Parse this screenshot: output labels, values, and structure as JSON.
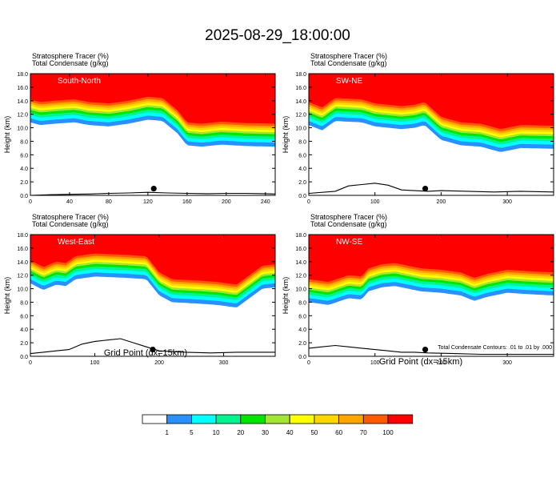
{
  "figure": {
    "title": "2025-08-29_18:00:00",
    "footnote": "Total Condensate Contours: .01 to .01 by .000",
    "xlabel": "Grid Point (dx=15km)"
  },
  "chart_data": [
    {
      "type": "heatmap",
      "panel_label": "South-North",
      "header_line1": "Stratosphere Tracer   (%)",
      "header_line2": "Total Condensate   (g/kg)",
      "ylabel": "Height (km)",
      "xlabel": "",
      "xlim": [
        0,
        250
      ],
      "ylim": [
        0,
        18
      ],
      "xticks": [
        0,
        40,
        80,
        120,
        160,
        200,
        240
      ],
      "yticks": [
        0.0,
        2.0,
        4.0,
        6.0,
        8.0,
        10.0,
        12.0,
        14.0,
        16.0,
        18.0
      ],
      "tropopause_profile_km": [
        [
          0,
          14.2
        ],
        [
          10,
          13.8
        ],
        [
          25,
          14.0
        ],
        [
          45,
          14.2
        ],
        [
          60,
          13.8
        ],
        [
          80,
          13.6
        ],
        [
          100,
          14.0
        ],
        [
          120,
          14.6
        ],
        [
          135,
          14.4
        ],
        [
          150,
          12.6
        ],
        [
          160,
          10.8
        ],
        [
          175,
          10.6
        ],
        [
          195,
          10.9
        ],
        [
          220,
          10.7
        ],
        [
          250,
          10.6
        ]
      ],
      "terrain_km": [
        [
          0,
          0.0
        ],
        [
          20,
          0.1
        ],
        [
          40,
          0.15
        ],
        [
          60,
          0.2
        ],
        [
          80,
          0.3
        ],
        [
          100,
          0.35
        ],
        [
          120,
          0.45
        ],
        [
          140,
          0.35
        ],
        [
          160,
          0.3
        ],
        [
          180,
          0.25
        ],
        [
          200,
          0.3
        ],
        [
          220,
          0.3
        ],
        [
          240,
          0.25
        ],
        [
          250,
          0.2
        ]
      ],
      "marker": [
        126,
        1.0
      ]
    },
    {
      "type": "heatmap",
      "panel_label": "SW-NE",
      "header_line1": "Stratosphere Tracer   (%)",
      "header_line2": "Total Condensate   (g/kg)",
      "ylabel": "Height (km)",
      "xlabel": "",
      "xlim": [
        0,
        370
      ],
      "ylim": [
        0,
        18
      ],
      "xticks": [
        0,
        100,
        200,
        300
      ],
      "yticks": [
        0.0,
        2.0,
        4.0,
        6.0,
        8.0,
        10.0,
        12.0,
        14.0,
        16.0,
        18.0
      ],
      "tropopause_profile_km": [
        [
          0,
          13.8
        ],
        [
          20,
          13.0
        ],
        [
          40,
          14.4
        ],
        [
          80,
          14.2
        ],
        [
          100,
          13.6
        ],
        [
          140,
          13.2
        ],
        [
          160,
          13.4
        ],
        [
          175,
          13.8
        ],
        [
          200,
          11.6
        ],
        [
          230,
          10.8
        ],
        [
          260,
          10.6
        ],
        [
          290,
          9.8
        ],
        [
          320,
          10.4
        ],
        [
          370,
          10.3
        ]
      ],
      "terrain_km": [
        [
          0,
          0.3
        ],
        [
          40,
          0.6
        ],
        [
          60,
          1.4
        ],
        [
          80,
          1.6
        ],
        [
          100,
          1.8
        ],
        [
          120,
          1.5
        ],
        [
          140,
          0.8
        ],
        [
          160,
          0.7
        ],
        [
          180,
          0.6
        ],
        [
          200,
          0.7
        ],
        [
          240,
          0.6
        ],
        [
          280,
          0.5
        ],
        [
          320,
          0.6
        ],
        [
          370,
          0.5
        ]
      ],
      "marker": [
        176,
        1.0
      ]
    },
    {
      "type": "heatmap",
      "panel_label": "West-East",
      "header_line1": "Stratosphere Tracer   (%)",
      "header_line2": "Total Condensate   (g/kg)",
      "ylabel": "Height (km)",
      "xlabel": "Grid Point (dx=15km)",
      "xlim": [
        0,
        380
      ],
      "ylim": [
        0,
        18
      ],
      "xticks": [
        0,
        100,
        200,
        300
      ],
      "yticks": [
        0.0,
        2.0,
        4.0,
        6.0,
        8.0,
        10.0,
        12.0,
        14.0,
        16.0,
        18.0
      ],
      "tropopause_profile_km": [
        [
          0,
          14.2
        ],
        [
          20,
          13.2
        ],
        [
          40,
          14.0
        ],
        [
          55,
          13.8
        ],
        [
          70,
          14.8
        ],
        [
          100,
          15.2
        ],
        [
          150,
          15.0
        ],
        [
          180,
          14.8
        ],
        [
          200,
          12.4
        ],
        [
          220,
          11.4
        ],
        [
          260,
          11.2
        ],
        [
          290,
          11.0
        ],
        [
          320,
          10.6
        ],
        [
          340,
          12.0
        ],
        [
          360,
          13.4
        ],
        [
          380,
          13.6
        ]
      ],
      "terrain_km": [
        [
          0,
          0.4
        ],
        [
          20,
          0.6
        ],
        [
          40,
          0.8
        ],
        [
          60,
          1.0
        ],
        [
          80,
          1.8
        ],
        [
          100,
          2.2
        ],
        [
          120,
          2.4
        ],
        [
          140,
          2.6
        ],
        [
          160,
          2.0
        ],
        [
          180,
          1.4
        ],
        [
          200,
          0.8
        ],
        [
          240,
          0.6
        ],
        [
          280,
          0.5
        ],
        [
          320,
          0.6
        ],
        [
          380,
          0.6
        ]
      ],
      "marker": [
        190,
        1.0
      ]
    },
    {
      "type": "heatmap",
      "panel_label": "NW-SE",
      "header_line1": "Stratosphere Tracer   (%)",
      "header_line2": "Total Condensate   (g/kg)",
      "ylabel": "Height (km)",
      "xlabel": "Grid Point (dx=15km)",
      "xlim": [
        0,
        370
      ],
      "ylim": [
        0,
        18
      ],
      "xticks": [
        0,
        100,
        200,
        300
      ],
      "yticks": [
        0.0,
        2.0,
        4.0,
        6.0,
        8.0,
        10.0,
        12.0,
        14.0,
        16.0,
        18.0
      ],
      "tropopause_profile_km": [
        [
          0,
          11.4
        ],
        [
          30,
          11.0
        ],
        [
          60,
          12.0
        ],
        [
          80,
          11.8
        ],
        [
          90,
          13.0
        ],
        [
          110,
          13.6
        ],
        [
          130,
          13.8
        ],
        [
          150,
          13.4
        ],
        [
          170,
          13.0
        ],
        [
          200,
          12.8
        ],
        [
          230,
          12.4
        ],
        [
          250,
          11.6
        ],
        [
          270,
          12.2
        ],
        [
          300,
          12.8
        ],
        [
          330,
          12.6
        ],
        [
          370,
          12.4
        ]
      ],
      "terrain_km": [
        [
          0,
          1.2
        ],
        [
          20,
          1.4
        ],
        [
          40,
          1.6
        ],
        [
          60,
          1.4
        ],
        [
          80,
          1.2
        ],
        [
          100,
          1.0
        ],
        [
          120,
          0.8
        ],
        [
          140,
          0.6
        ],
        [
          160,
          0.6
        ],
        [
          180,
          0.5
        ],
        [
          220,
          0.4
        ],
        [
          260,
          0.3
        ],
        [
          300,
          0.3
        ],
        [
          370,
          0.3
        ]
      ],
      "marker": [
        176,
        1.0
      ]
    }
  ],
  "colorbar": {
    "levels": [
      "1",
      "5",
      "10",
      "20",
      "30",
      "40",
      "50",
      "60",
      "70",
      "100"
    ],
    "colors": [
      "#ffffff",
      "#2a8fff",
      "#00ffff",
      "#00f590",
      "#00e600",
      "#a0e632",
      "#ffff00",
      "#ffd700",
      "#ffa500",
      "#ff5a00",
      "#ff0000"
    ]
  }
}
